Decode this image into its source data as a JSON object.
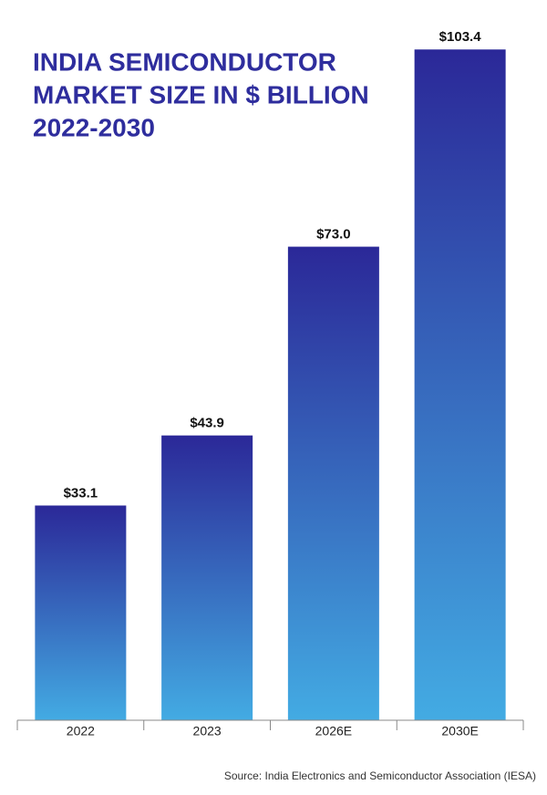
{
  "chart_data": {
    "type": "bar",
    "title": [
      "INDIA SEMICONDUCTOR",
      "MARKET SIZE IN $ BILLION",
      "2022-2030"
    ],
    "categories": [
      "2022",
      "2023",
      "2026E",
      "2030E"
    ],
    "values": [
      33.1,
      43.9,
      73.0,
      103.4
    ],
    "value_labels": [
      "$33.1",
      "$43.9",
      "$73.0",
      "$103.4"
    ],
    "gradient": [
      "#2b2898",
      "#43abe3"
    ],
    "ylim": [
      0,
      104
    ],
    "source": "Source: India Electronics and Semiconductor Association (IESA)"
  }
}
